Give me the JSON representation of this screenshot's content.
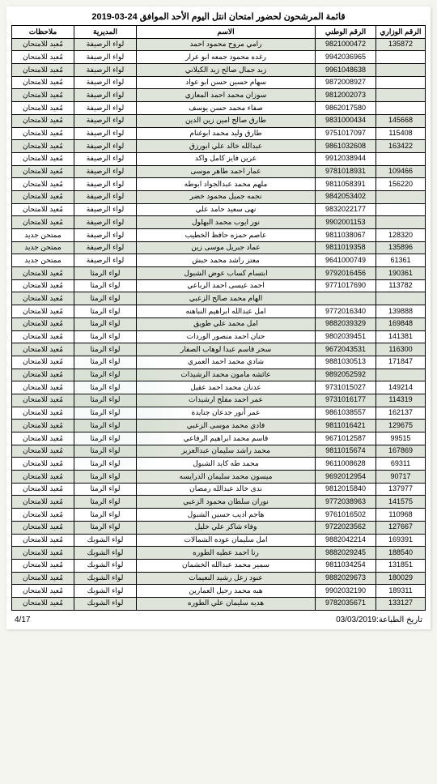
{
  "title": "قائمة المرشحون لحضور امتحان انتل اليوم الأحد الموافق 24-03-2019",
  "headers": {
    "ministerial": "الرقم الوزاري",
    "national": "الرقم الوطني",
    "name": "الاسم",
    "directorate": "المديرية",
    "notes": "ملاحظات"
  },
  "footer": {
    "page": "4/17",
    "printdate": "تاريخ الطباعة:03/03/2019"
  },
  "dir_rusaifa": "لواء الرصيفة",
  "dir_ramtha": "لواء الرمثا",
  "dir_shoubak": "لواء الشوبك",
  "note_retake": "مُعيد للامتحان",
  "note_new": "ممتحن جديد",
  "rows": [
    {
      "min": "135872",
      "nat": "9821000472",
      "name": "رامي مروح محمود احمد",
      "dir": 0,
      "note": 0,
      "alt": true
    },
    {
      "min": "",
      "nat": "9942036965",
      "name": "رغده محمود جمعه ابو عرار",
      "dir": 0,
      "note": 0,
      "alt": false
    },
    {
      "min": "",
      "nat": "9961048638",
      "name": "زيد جمال صالح زيد الكيلاني",
      "dir": 0,
      "note": 0,
      "alt": true
    },
    {
      "min": "",
      "nat": "9872008927",
      "name": "سهام حسين حسن ابو عواد",
      "dir": 0,
      "note": 0,
      "alt": false
    },
    {
      "min": "",
      "nat": "9812002073",
      "name": "سوزان محمد احمد المعازي",
      "dir": 0,
      "note": 0,
      "alt": true
    },
    {
      "min": "",
      "nat": "9862017580",
      "name": "صفاء محمد حسن يوسف",
      "dir": 0,
      "note": 0,
      "alt": false
    },
    {
      "min": "145668",
      "nat": "9831000434",
      "name": "طارق صالح امين زين الدين",
      "dir": 0,
      "note": 0,
      "alt": true
    },
    {
      "min": "115408",
      "nat": "9751017097",
      "name": "طارق وليد محمد ابوغنام",
      "dir": 0,
      "note": 0,
      "alt": false
    },
    {
      "min": "163422",
      "nat": "9861032608",
      "name": "عبدالله خالد علي ابورزق",
      "dir": 0,
      "note": 0,
      "alt": true
    },
    {
      "min": "",
      "nat": "9912038944",
      "name": "عرين فايز كامل واكد",
      "dir": 0,
      "note": 0,
      "alt": false
    },
    {
      "min": "109466",
      "nat": "9781018931",
      "name": "عمار احمد طاهر موسى",
      "dir": 0,
      "note": 0,
      "alt": true
    },
    {
      "min": "156220",
      "nat": "9811058391",
      "name": "ملهم محمد عبدالجواد ابوطه",
      "dir": 0,
      "note": 0,
      "alt": false
    },
    {
      "min": "",
      "nat": "9842053402",
      "name": "نجمه جميل محمود خضر",
      "dir": 0,
      "note": 0,
      "alt": true
    },
    {
      "min": "",
      "nat": "9832022177",
      "name": "نهى سعيد حامد علي",
      "dir": 0,
      "note": 0,
      "alt": false
    },
    {
      "min": "",
      "nat": "9902001153",
      "name": "نور ايوب محمد البهلول",
      "dir": 0,
      "note": 0,
      "alt": true
    },
    {
      "min": "128320",
      "nat": "9811038067",
      "name": "عاصم حمزه حافظ الخطيب",
      "dir": 0,
      "note": 1,
      "alt": false
    },
    {
      "min": "135896",
      "nat": "9811019358",
      "name": "عماد جبريل موسى زين",
      "dir": 0,
      "note": 1,
      "alt": true
    },
    {
      "min": "61361",
      "nat": "9641000749",
      "name": "معتز راشد محمد حبش",
      "dir": 0,
      "note": 1,
      "alt": false
    },
    {
      "min": "190361",
      "nat": "9792016456",
      "name": "ابتسام كساب عوض الشبول",
      "dir": 1,
      "note": 0,
      "alt": true
    },
    {
      "min": "113782",
      "nat": "9771017690",
      "name": "احمد عيسى احمد الرباعي",
      "dir": 1,
      "note": 0,
      "alt": false
    },
    {
      "min": "",
      "nat": "",
      "name": "الهام محمد صالح الزعبي",
      "dir": 1,
      "note": 0,
      "alt": true
    },
    {
      "min": "139888",
      "nat": "9772016340",
      "name": "امل عبدالله ابراهيم النباهنه",
      "dir": 1,
      "note": 0,
      "alt": false
    },
    {
      "min": "169848",
      "nat": "9882039329",
      "name": "امل محمد علي طويق",
      "dir": 1,
      "note": 0,
      "alt": true
    },
    {
      "min": "141381",
      "nat": "9802039451",
      "name": "حنان احمد منصور الوردات",
      "dir": 1,
      "note": 0,
      "alt": false
    },
    {
      "min": "116300",
      "nat": "9672043531",
      "name": "سحر قاسم عبدا لوهاب الصفار",
      "dir": 1,
      "note": 0,
      "alt": true
    },
    {
      "min": "171847",
      "nat": "9881030513",
      "name": "شادي محمد احمد العمري",
      "dir": 1,
      "note": 0,
      "alt": false
    },
    {
      "min": "",
      "nat": "9892052592",
      "name": "عائشه مامون محمد الرشيدات",
      "dir": 1,
      "note": 0,
      "alt": true
    },
    {
      "min": "149214",
      "nat": "9731015027",
      "name": "عدنان محمد احمد عقيل",
      "dir": 1,
      "note": 0,
      "alt": false
    },
    {
      "min": "114319",
      "nat": "9731016177",
      "name": "عمر احمد مفلح ارشيدات",
      "dir": 1,
      "note": 0,
      "alt": true
    },
    {
      "min": "162137",
      "nat": "9861038557",
      "name": "عمر أنور جدعان جنايدة",
      "dir": 1,
      "note": 0,
      "alt": false
    },
    {
      "min": "129675",
      "nat": "9811016421",
      "name": "فادي محمد موسى الزعبي",
      "dir": 1,
      "note": 0,
      "alt": true
    },
    {
      "min": "99515",
      "nat": "9671012587",
      "name": "قاسم محمد ابراهيم الرفاعي",
      "dir": 1,
      "note": 0,
      "alt": false
    },
    {
      "min": "167869",
      "nat": "9811015674",
      "name": "محمد راشد سليمان عبدالعزيز",
      "dir": 1,
      "note": 0,
      "alt": true
    },
    {
      "min": "69311",
      "nat": "9611008628",
      "name": "محمد طه كايد الشبول",
      "dir": 1,
      "note": 0,
      "alt": false
    },
    {
      "min": "90717",
      "nat": "9692012954",
      "name": "ميسون محمد سليمان الدرايسه",
      "dir": 1,
      "note": 0,
      "alt": true
    },
    {
      "min": "137977",
      "nat": "9812015840",
      "name": "ندى خالد عبدالله رمضان",
      "dir": 1,
      "note": 0,
      "alt": false
    },
    {
      "min": "141575",
      "nat": "9772038963",
      "name": "نوران سلطان محمود الزعبي",
      "dir": 1,
      "note": 0,
      "alt": true
    },
    {
      "min": "110968",
      "nat": "9761016502",
      "name": "هاجم اديب حسين الشبول",
      "dir": 1,
      "note": 0,
      "alt": false
    },
    {
      "min": "127667",
      "nat": "9722023562",
      "name": "وفاء شاكر علي خليل",
      "dir": 1,
      "note": 0,
      "alt": true
    },
    {
      "min": "169391",
      "nat": "9882042214",
      "name": "امل سليمان عوده الشمالات",
      "dir": 2,
      "note": 0,
      "alt": false
    },
    {
      "min": "188540",
      "nat": "9882029245",
      "name": "رنا احمد عطيه الطوره",
      "dir": 2,
      "note": 0,
      "alt": true
    },
    {
      "min": "131851",
      "nat": "9811034254",
      "name": "سمير محمد عبدالله الخشمان",
      "dir": 2,
      "note": 0,
      "alt": false
    },
    {
      "min": "180029",
      "nat": "9882029673",
      "name": "عنود زعل رشيد النعيمات",
      "dir": 2,
      "note": 0,
      "alt": true
    },
    {
      "min": "189311",
      "nat": "9902032190",
      "name": "هبه محمد رحيل العمارين",
      "dir": 2,
      "note": 0,
      "alt": false
    },
    {
      "min": "133127",
      "nat": "9782035671",
      "name": "هديه سليمان علي الطوره",
      "dir": 2,
      "note": 0,
      "alt": true
    }
  ]
}
